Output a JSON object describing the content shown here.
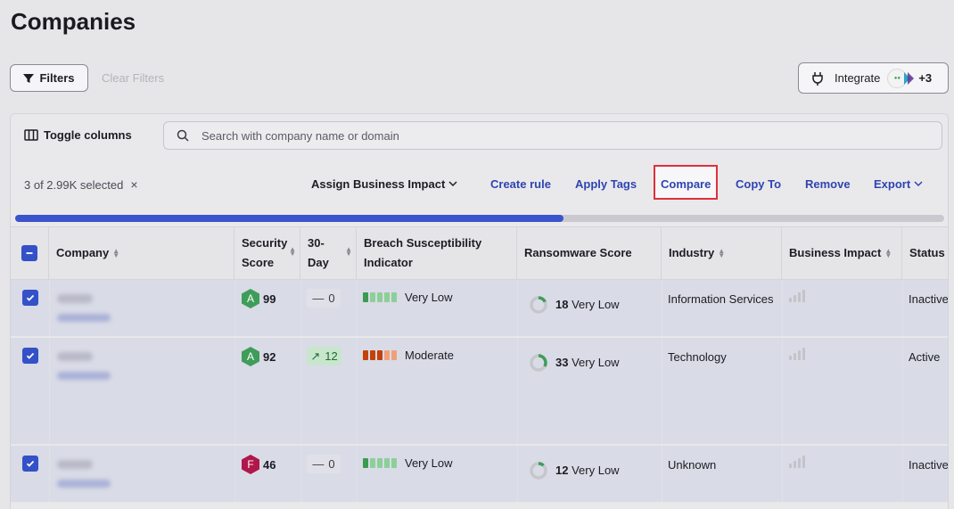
{
  "page": {
    "title": "Companies"
  },
  "toolbar": {
    "filters_label": "Filters",
    "clear_filters_label": "Clear Filters",
    "integrate_label": "Integrate",
    "integrate_more": "+3"
  },
  "panel": {
    "toggle_columns_label": "Toggle columns",
    "search_placeholder": "Search with company name or domain",
    "selection_text": "3 of 2.99K selected",
    "selection_clear": "×",
    "actions": {
      "assign_business_impact": "Assign Business Impact",
      "create_rule": "Create rule",
      "apply_tags": "Apply Tags",
      "compare": "Compare",
      "copy_to": "Copy To",
      "remove": "Remove",
      "export": "Export"
    },
    "progress_fraction": 0.59
  },
  "table": {
    "headers": {
      "company": "Company",
      "security_score_1": "Security",
      "security_score_2": "Score",
      "thirty_day_1": "30-",
      "thirty_day_2": "Day",
      "breach_1": "Breach Susceptibility",
      "breach_2": "Indicator",
      "ransomware": "Ransomware Score",
      "industry": "Industry",
      "business_impact": "Business Impact",
      "status": "Status"
    },
    "rows": [
      {
        "grade": "A",
        "grade_color": "#3f9d5a",
        "score": "99",
        "trend": "0",
        "trend_type": "flat",
        "bsi_label": "Very Low",
        "bsi_colors": [
          "#3b9a52",
          "#8ccf99",
          "#8ccf99",
          "#8ccf99",
          "#8ccf99"
        ],
        "ransomware_value": "18",
        "ransomware_label": "Very Low",
        "ransomware_fraction": 0.18,
        "industry": "Information Services",
        "status": "Inactive"
      },
      {
        "grade": "A",
        "grade_color": "#3f9d5a",
        "score": "92",
        "trend": "12",
        "trend_type": "up",
        "bsi_label": "Moderate",
        "bsi_colors": [
          "#c2410c",
          "#c2410c",
          "#c2410c",
          "#f0a078",
          "#f0a078"
        ],
        "ransomware_value": "33",
        "ransomware_label": "Very Low",
        "ransomware_fraction": 0.33,
        "industry": "Technology",
        "status": "Active"
      },
      {
        "grade": "F",
        "grade_color": "#b0174a",
        "score": "46",
        "trend": "0",
        "trend_type": "flat",
        "bsi_label": "Very Low",
        "bsi_colors": [
          "#3b9a52",
          "#8ccf99",
          "#8ccf99",
          "#8ccf99",
          "#8ccf99"
        ],
        "ransomware_value": "12",
        "ransomware_label": "Very Low",
        "ransomware_fraction": 0.12,
        "industry": "Unknown",
        "status": "Inactive"
      }
    ]
  }
}
